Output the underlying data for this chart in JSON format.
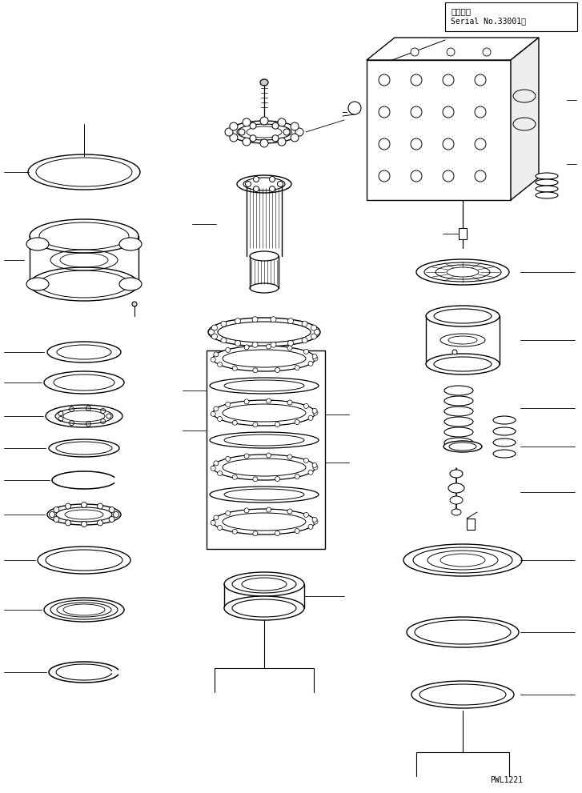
{
  "title_jp": "適用号機",
  "title_serial": "Serial No.33001～",
  "part_code": "PWL1221",
  "bg_color": "#ffffff",
  "line_color": "#000000",
  "fig_width": 7.27,
  "fig_height": 9.91,
  "dpi": 100
}
